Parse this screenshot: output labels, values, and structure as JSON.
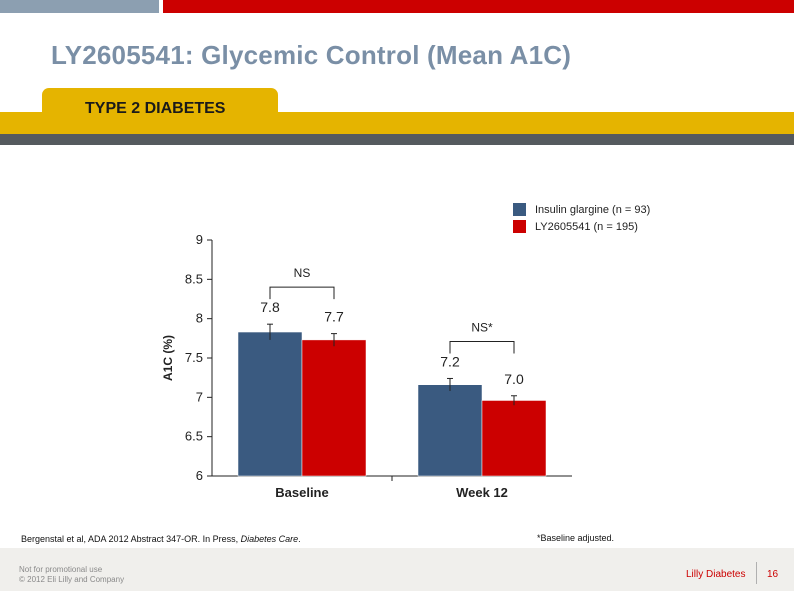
{
  "slide": {
    "title": "LY2605541: Glycemic Control (Mean A1C)",
    "tab_label": "TYPE 2 DIABETES"
  },
  "colors": {
    "brand_red": "#cc0000",
    "gold": "#e5b400",
    "glargine_blue": "#3a5a80",
    "ly_red": "#cc0000"
  },
  "chart_data": {
    "type": "bar",
    "categories": [
      "Baseline",
      "Week 12"
    ],
    "series": [
      {
        "name": "Insulin glargine (n = 93)",
        "values": [
          7.83,
          7.16
        ],
        "labels": [
          "7.8",
          "7.2"
        ],
        "error": [
          0.1,
          0.08
        ],
        "color": "#3a5a80"
      },
      {
        "name": "LY2605541 (n = 195)",
        "values": [
          7.73,
          6.96
        ],
        "labels": [
          "7.7",
          "7.0"
        ],
        "error": [
          0.08,
          0.06
        ],
        "color": "#cc0000"
      }
    ],
    "ylabel": "A1C (%)",
    "xlabel": "",
    "ylim": [
      6,
      9
    ],
    "yticks": [
      "6",
      "6.5",
      "7",
      "7.5",
      "8",
      "8.5",
      "9"
    ],
    "annotations": [
      "NS",
      "NS*"
    ],
    "legend_position": "top-right",
    "grid": false
  },
  "footnotes": {
    "reference_prefix": "Bergenstal et al, ADA 2012 Abstract 347-OR. In Press, ",
    "reference_journal": "Diabetes Care",
    "reference_suffix": ".",
    "baseline_note": "*Baseline adjusted."
  },
  "footer": {
    "notice_line1": "Not for promotional use",
    "notice_line2": "© 2012 Eli Lilly and Company",
    "brand": "Lilly Diabetes",
    "page_number": "16"
  }
}
